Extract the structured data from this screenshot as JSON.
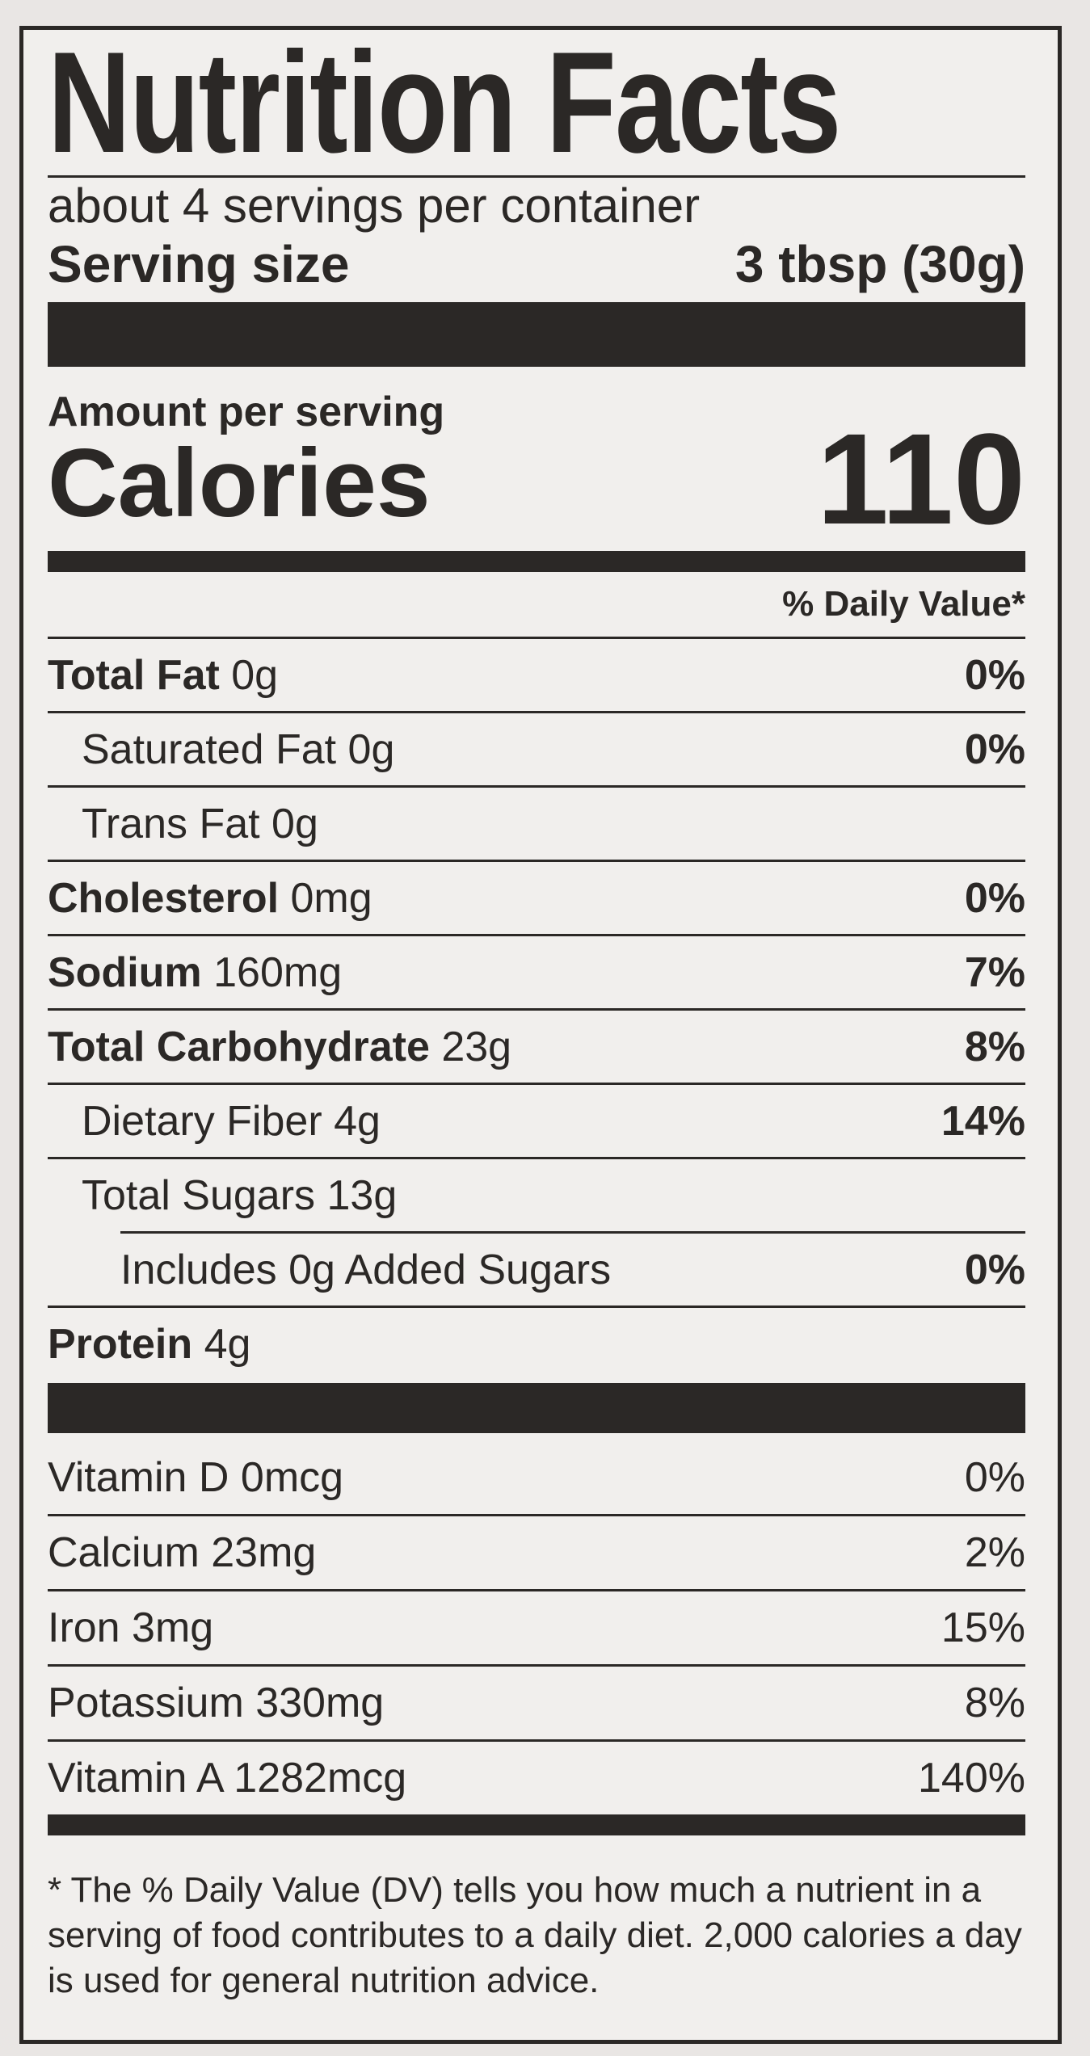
{
  "title": "Nutrition Facts",
  "servings_per_container": "about 4 servings per container",
  "serving_size": {
    "label": "Serving size",
    "value": "3 tbsp (30g)"
  },
  "amount_per_serving": "Amount per serving",
  "calories": {
    "label": "Calories",
    "value": "110"
  },
  "dv_header": "% Daily Value*",
  "nutrients": [
    {
      "name": "Total Fat",
      "amount": "0g",
      "dv": "0%"
    },
    {
      "name": "Saturated Fat",
      "amount": "0g",
      "dv": "0%"
    },
    {
      "name": "Trans Fat",
      "amount": "0g",
      "dv": ""
    },
    {
      "name": "Cholesterol",
      "amount": "0mg",
      "dv": "0%"
    },
    {
      "name": "Sodium",
      "amount": "160mg",
      "dv": "7%"
    },
    {
      "name": "Total Carbohydrate",
      "amount": "23g",
      "dv": "8%"
    },
    {
      "name": "Dietary Fiber",
      "amount": "4g",
      "dv": "14%"
    },
    {
      "name": "Total Sugars",
      "amount": "13g",
      "dv": ""
    },
    {
      "name": "Includes 0g Added Sugars",
      "amount": "",
      "dv": "0%"
    },
    {
      "name": "Protein",
      "amount": "4g",
      "dv": ""
    }
  ],
  "vitamins": [
    {
      "text": "Vitamin D 0mcg",
      "dv": "0%"
    },
    {
      "text": "Calcium 23mg",
      "dv": "2%"
    },
    {
      "text": "Iron 3mg",
      "dv": "15%"
    },
    {
      "text": "Potassium 330mg",
      "dv": "8%"
    },
    {
      "text": "Vitamin A 1282mcg",
      "dv": "140%"
    }
  ],
  "footnote": "* The % Daily Value (DV) tells you how much a nutrient in a serving of food contributes to a daily diet. 2,000 calories a day is used for general nutrition advice."
}
